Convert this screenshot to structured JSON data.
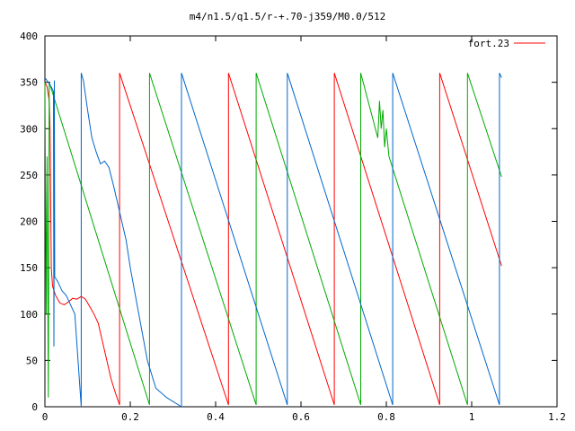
{
  "chart_data": {
    "type": "line",
    "title": "m4/n1.5/q1.5/r-+.70-j359/M0.0/512",
    "xlabel": "",
    "ylabel": "",
    "xlim": [
      0,
      1.2
    ],
    "ylim": [
      0,
      400
    ],
    "x_ticks": [
      0,
      0.2,
      0.4,
      0.6,
      0.8,
      1,
      1.2
    ],
    "x_tick_labels": [
      "0",
      "0.2",
      "0.4",
      "0.6",
      "0.8",
      "1",
      "1.2"
    ],
    "y_ticks": [
      0,
      50,
      100,
      150,
      200,
      250,
      300,
      350,
      400
    ],
    "y_tick_labels": [
      "0",
      "50",
      "100",
      "150",
      "200",
      "250",
      "300",
      "350",
      "400"
    ],
    "grid": false,
    "legend_position": "top-right",
    "legend": [
      {
        "label": "fort.23",
        "color": "#ff0000"
      }
    ],
    "series": [
      {
        "color": "#ff0000",
        "points": [
          [
            0.0,
            350
          ],
          [
            0.005,
            345
          ],
          [
            0.01,
            330
          ],
          [
            0.012,
            300
          ],
          [
            0.013,
            250
          ],
          [
            0.014,
            200
          ],
          [
            0.015,
            150
          ],
          [
            0.018,
            130
          ],
          [
            0.025,
            120
          ],
          [
            0.035,
            112
          ],
          [
            0.045,
            110
          ],
          [
            0.055,
            113
          ],
          [
            0.065,
            117
          ],
          [
            0.075,
            116
          ],
          [
            0.085,
            119
          ],
          [
            0.095,
            116
          ],
          [
            0.105,
            108
          ],
          [
            0.115,
            100
          ],
          [
            0.125,
            90
          ],
          [
            0.135,
            70
          ],
          [
            0.145,
            50
          ],
          [
            0.155,
            30
          ],
          [
            0.165,
            15
          ],
          [
            0.175,
            2
          ],
          [
            0.175,
            360
          ],
          [
            0.43,
            2
          ],
          [
            0.43,
            360
          ],
          [
            0.678,
            2
          ],
          [
            0.678,
            360
          ],
          [
            0.925,
            2
          ],
          [
            0.925,
            360
          ],
          [
            1.07,
            152
          ]
        ]
      },
      {
        "color": "#00aa00",
        "points": [
          [
            0.0,
            350
          ],
          [
            0.003,
            100
          ],
          [
            0.005,
            270
          ],
          [
            0.008,
            10
          ],
          [
            0.01,
            350
          ],
          [
            0.245,
            2
          ],
          [
            0.245,
            360
          ],
          [
            0.495,
            2
          ],
          [
            0.495,
            360
          ],
          [
            0.74,
            2
          ],
          [
            0.74,
            360
          ],
          [
            0.78,
            290
          ],
          [
            0.784,
            330
          ],
          [
            0.788,
            300
          ],
          [
            0.792,
            320
          ],
          [
            0.796,
            280
          ],
          [
            0.8,
            300
          ],
          [
            0.806,
            270
          ],
          [
            0.99,
            2
          ],
          [
            0.99,
            360
          ],
          [
            1.07,
            248
          ]
        ]
      },
      {
        "color": "#0066cc",
        "points": [
          [
            0.0,
            355
          ],
          [
            0.008,
            350
          ],
          [
            0.015,
            345
          ],
          [
            0.02,
            340
          ],
          [
            0.021,
            65
          ],
          [
            0.022,
            352
          ],
          [
            0.023,
            140
          ],
          [
            0.03,
            135
          ],
          [
            0.04,
            125
          ],
          [
            0.05,
            120
          ],
          [
            0.06,
            110
          ],
          [
            0.07,
            100
          ],
          [
            0.085,
            0
          ],
          [
            0.085,
            360
          ],
          [
            0.09,
            352
          ],
          [
            0.1,
            320
          ],
          [
            0.11,
            290
          ],
          [
            0.12,
            275
          ],
          [
            0.13,
            262
          ],
          [
            0.14,
            265
          ],
          [
            0.15,
            258
          ],
          [
            0.16,
            240
          ],
          [
            0.17,
            220
          ],
          [
            0.18,
            200
          ],
          [
            0.19,
            180
          ],
          [
            0.2,
            150
          ],
          [
            0.22,
            100
          ],
          [
            0.24,
            50
          ],
          [
            0.26,
            20
          ],
          [
            0.285,
            10
          ],
          [
            0.32,
            0
          ],
          [
            0.32,
            360
          ],
          [
            0.568,
            2
          ],
          [
            0.568,
            360
          ],
          [
            0.815,
            2
          ],
          [
            0.815,
            360
          ],
          [
            1.065,
            2
          ],
          [
            1.065,
            360
          ],
          [
            1.07,
            355
          ]
        ]
      }
    ]
  }
}
